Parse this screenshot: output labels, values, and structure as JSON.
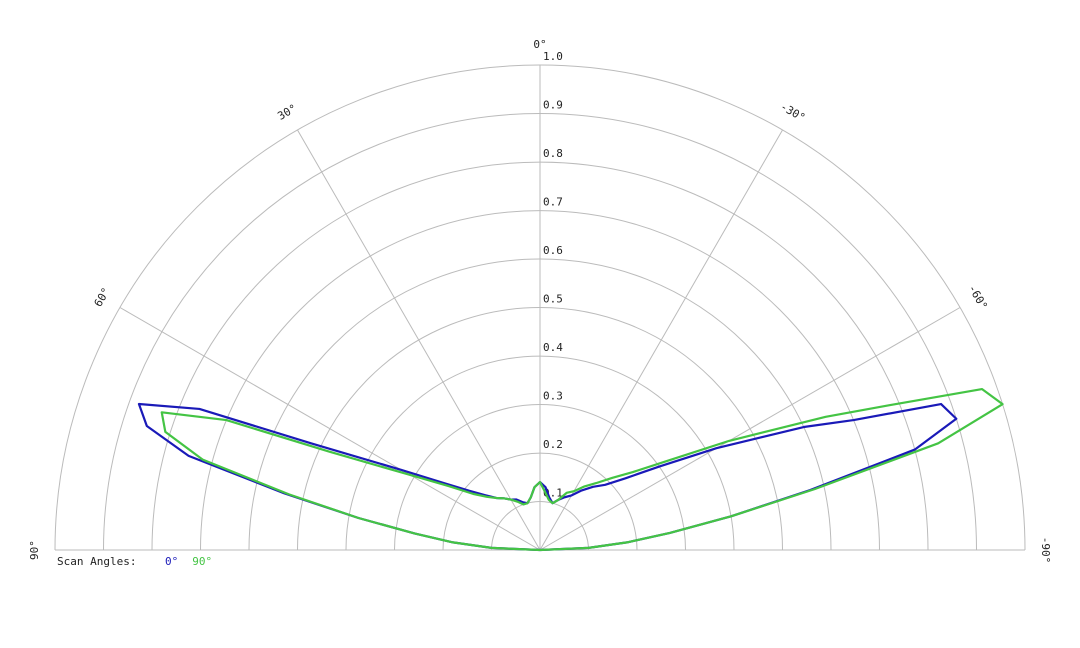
{
  "chart_data": {
    "type": "polar",
    "x": [
      90,
      87.5,
      85,
      82.5,
      80,
      77.5,
      75,
      72.5,
      70,
      67.5,
      65,
      60,
      55,
      50,
      45,
      40,
      35,
      30,
      25,
      20,
      15,
      10,
      5,
      0,
      -5,
      -10,
      -15,
      -20,
      -25,
      -30,
      -35,
      -40,
      -45,
      -50,
      -55,
      -60,
      -65,
      -67.5,
      -70,
      -72.5,
      -75,
      -77.5,
      -80,
      -82.5,
      -85,
      -87.5,
      -90
    ],
    "series": [
      {
        "name": "0°",
        "color": "#1a1ab8",
        "values": [
          0,
          0.1,
          0.18,
          0.26,
          0.38,
          0.54,
          0.75,
          0.85,
          0.88,
          0.76,
          0.52,
          0.33,
          0.24,
          0.19,
          0.16,
          0.14,
          0.13,
          0.12,
          0.115,
          0.105,
          0.1,
          0.11,
          0.13,
          0.14,
          0.13,
          0.11,
          0.1,
          0.11,
          0.12,
          0.13,
          0.15,
          0.17,
          0.19,
          0.23,
          0.3,
          0.42,
          0.6,
          0.7,
          0.88,
          0.9,
          0.8,
          0.57,
          0.4,
          0.27,
          0.18,
          0.1,
          0
        ]
      },
      {
        "name": "90°",
        "color": "#44c444",
        "values": [
          0,
          0.1,
          0.18,
          0.26,
          0.38,
          0.53,
          0.72,
          0.81,
          0.83,
          0.7,
          0.48,
          0.31,
          0.23,
          0.18,
          0.155,
          0.14,
          0.13,
          0.12,
          0.11,
          0.1,
          0.1,
          0.11,
          0.13,
          0.14,
          0.12,
          0.105,
          0.1,
          0.11,
          0.13,
          0.14,
          0.16,
          0.18,
          0.21,
          0.25,
          0.32,
          0.45,
          0.65,
          0.78,
          0.97,
          1.0,
          0.85,
          0.58,
          0.4,
          0.27,
          0.18,
          0.1,
          0
        ]
      }
    ],
    "legend_title": "Scan Angles:",
    "rlim": [
      0,
      1
    ],
    "rticks": [
      0.1,
      0.2,
      0.3,
      0.4,
      0.5,
      0.6,
      0.7,
      0.8,
      0.9,
      {
        "value": 1,
        "label": "1.0"
      }
    ],
    "angle_ticks": [
      {
        "value": 90,
        "label": "90°"
      },
      {
        "value": 60,
        "label": "60°"
      },
      {
        "value": 30,
        "label": "30°"
      },
      {
        "value": 0,
        "label": "0°"
      },
      {
        "value": -30,
        "label": "-30°"
      },
      {
        "value": -60,
        "label": "-60°"
      },
      {
        "value": -90,
        "label": "-90°"
      }
    ]
  }
}
